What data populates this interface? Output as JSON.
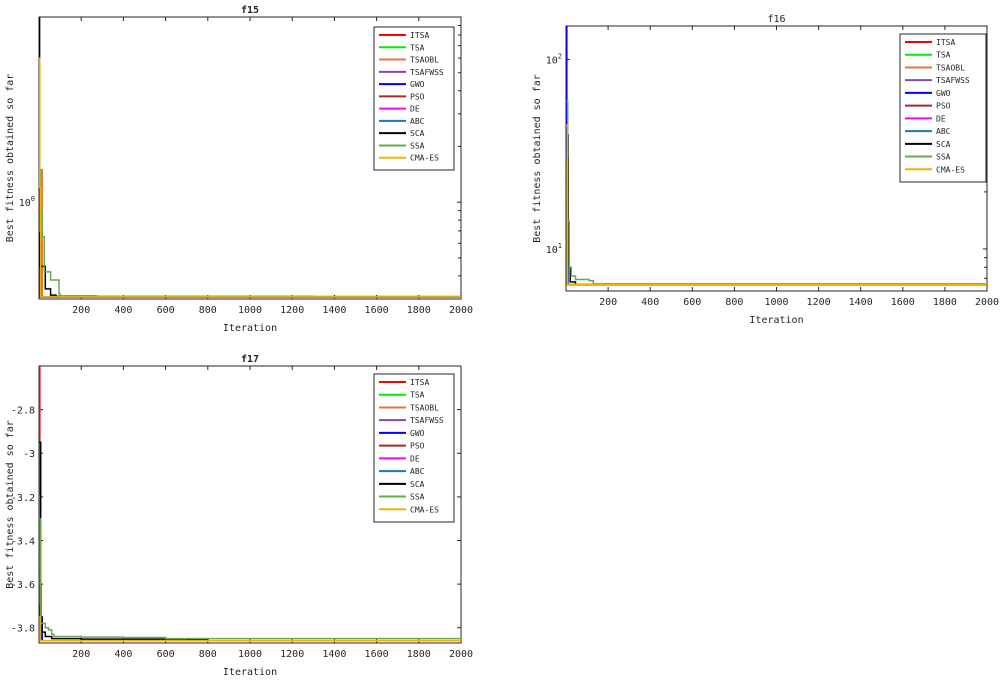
{
  "legend_colors": {
    "ITSA": "#ff0000",
    "TSA": "#00ee00",
    "TSAOBL": "#e8743b",
    "TSAFWSS": "#8e44ad",
    "GWO": "#0000ff",
    "PSO": "#a52a2a",
    "DE": "#ff00ff",
    "ABC": "#1f77b4",
    "SCA": "#000000",
    "SSA": "#6aa84f",
    "CMA-ES": "#f0b400"
  },
  "chart_data": [
    {
      "title": "f15",
      "type": "line",
      "xlabel": "Iteration",
      "ylabel": "Best fitness obtained so far",
      "xlim": [
        0,
        2000
      ],
      "xticks": [
        200,
        400,
        600,
        800,
        1000,
        1200,
        1400,
        1600,
        1800,
        2000
      ],
      "ylog": true,
      "ylim": [
        0.3,
        10
      ],
      "yticks": [
        {
          "v": 1,
          "base": "10",
          "exp": "0"
        }
      ],
      "legend_position": "top-right",
      "series": [
        {
          "name": "ITSA",
          "x": [
            1,
            6,
            2000
          ],
          "y": [
            0.4,
            0.308,
            0.3075
          ]
        },
        {
          "name": "TSA",
          "x": [
            1,
            6,
            2000
          ],
          "y": [
            0.6,
            0.308,
            0.3075
          ]
        },
        {
          "name": "TSAOBL",
          "x": [
            1,
            15,
            2000
          ],
          "y": [
            1.5,
            0.308,
            0.3075
          ]
        },
        {
          "name": "TSAFWSS",
          "x": [
            1,
            10,
            2000
          ],
          "y": [
            0.6,
            0.308,
            0.3075
          ]
        },
        {
          "name": "GWO",
          "x": [
            1,
            6,
            2000
          ],
          "y": [
            0.9,
            0.308,
            0.3075
          ]
        },
        {
          "name": "PSO",
          "x": [
            1,
            8,
            2000
          ],
          "y": [
            0.7,
            0.308,
            0.3075
          ]
        },
        {
          "name": "DE",
          "x": [
            1,
            8,
            2000
          ],
          "y": [
            0.5,
            0.308,
            0.3075
          ]
        },
        {
          "name": "ABC",
          "x": [
            1,
            10,
            2000
          ],
          "y": [
            0.45,
            0.308,
            0.3075
          ]
        },
        {
          "name": "SCA",
          "x": [
            1,
            3,
            30,
            55,
            80,
            280,
            2000
          ],
          "y": [
            10,
            0.45,
            0.34,
            0.315,
            0.31,
            0.309,
            0.308
          ]
        },
        {
          "name": "SSA",
          "x": [
            1,
            5,
            8,
            15,
            25,
            55,
            95,
            100,
            270,
            1300,
            2000
          ],
          "y": [
            0.7,
            1.5,
            0.9,
            0.65,
            0.42,
            0.38,
            0.32,
            0.312,
            0.31,
            0.308,
            0.3075
          ]
        },
        {
          "name": "CMA-ES",
          "x": [
            1,
            4,
            8,
            2000
          ],
          "y": [
            6,
            1.2,
            0.308,
            0.3075
          ]
        }
      ]
    },
    {
      "title": "f16",
      "type": "line",
      "xlabel": "Iteration",
      "ylabel": "Best fitness obtained so far",
      "xlim": [
        0,
        2000
      ],
      "xticks": [
        200,
        400,
        600,
        800,
        1000,
        1200,
        1400,
        1600,
        1800,
        2000
      ],
      "ylog": true,
      "ylim": [
        6,
        150
      ],
      "yticks": [
        {
          "v": 10,
          "base": "10",
          "exp": "1"
        },
        {
          "v": 100,
          "base": "10",
          "exp": "2"
        }
      ],
      "legend_position": "top-right",
      "series": [
        {
          "name": "ITSA",
          "x": [
            1,
            8,
            2000
          ],
          "y": [
            20,
            6.5,
            6.45
          ]
        },
        {
          "name": "TSA",
          "x": [
            1,
            8,
            2000
          ],
          "y": [
            25,
            6.5,
            6.45
          ]
        },
        {
          "name": "TSAOBL",
          "x": [
            1,
            10,
            2000
          ],
          "y": [
            30,
            6.5,
            6.45
          ]
        },
        {
          "name": "TSAFWSS",
          "x": [
            1,
            10,
            2000
          ],
          "y": [
            20,
            6.5,
            6.45
          ]
        },
        {
          "name": "GWO",
          "x": [
            1,
            4,
            10,
            2000
          ],
          "y": [
            150,
            30,
            6.5,
            6.45
          ]
        },
        {
          "name": "PSO",
          "x": [
            1,
            10,
            2000
          ],
          "y": [
            25,
            6.5,
            6.45
          ]
        },
        {
          "name": "DE",
          "x": [
            1,
            10,
            2000
          ],
          "y": [
            20,
            6.5,
            6.45
          ]
        },
        {
          "name": "ABC",
          "x": [
            1,
            10,
            2000
          ],
          "y": [
            20,
            6.5,
            6.45
          ]
        },
        {
          "name": "SCA",
          "x": [
            1,
            10,
            20,
            45,
            2000
          ],
          "y": [
            40,
            8,
            6.7,
            6.5,
            6.45
          ]
        },
        {
          "name": "SSA",
          "x": [
            1,
            8,
            15,
            25,
            45,
            110,
            130,
            2000
          ],
          "y": [
            60,
            14,
            8,
            7.2,
            6.9,
            6.8,
            6.55,
            6.5
          ]
        },
        {
          "name": "CMA-ES",
          "x": [
            1,
            6,
            2000
          ],
          "y": [
            45,
            6.5,
            6.45
          ]
        }
      ]
    },
    {
      "title": "f17",
      "type": "line",
      "xlabel": "Iteration",
      "ylabel": "Best fitness obtained so far",
      "xlim": [
        0,
        2000
      ],
      "xticks": [
        200,
        400,
        600,
        800,
        1000,
        1200,
        1400,
        1600,
        1800,
        2000
      ],
      "ylog": false,
      "ylim": [
        -3.87,
        -2.6
      ],
      "yticks": [
        {
          "v": -3.8,
          "label": "-3.8"
        },
        {
          "v": -3.6,
          "label": "-3.6"
        },
        {
          "v": -3.4,
          "label": "-3.4"
        },
        {
          "v": -3.2,
          "label": "-3.2"
        },
        {
          "v": -3,
          "label": "-3"
        },
        {
          "v": -2.8,
          "label": "-2.8"
        }
      ],
      "legend_position": "top-right",
      "series": [
        {
          "name": "ITSA",
          "x": [
            1,
            4,
            10,
            2000
          ],
          "y": [
            -2.6,
            -3.6,
            -3.86,
            -3.862
          ]
        },
        {
          "name": "TSA",
          "x": [
            1,
            6,
            2000
          ],
          "y": [
            -3.2,
            -3.86,
            -3.862
          ]
        },
        {
          "name": "TSAOBL",
          "x": [
            1,
            8,
            2000
          ],
          "y": [
            -3.5,
            -3.86,
            -3.862
          ]
        },
        {
          "name": "TSAFWSS",
          "x": [
            1,
            8,
            2000
          ],
          "y": [
            -3.4,
            -3.86,
            -3.862
          ]
        },
        {
          "name": "GWO",
          "x": [
            1,
            5,
            15,
            2000
          ],
          "y": [
            -3.7,
            -3.75,
            -3.86,
            -3.862
          ]
        },
        {
          "name": "PSO",
          "x": [
            1,
            8,
            2000
          ],
          "y": [
            -3.3,
            -3.86,
            -3.862
          ]
        },
        {
          "name": "DE",
          "x": [
            1,
            8,
            2000
          ],
          "y": [
            -3.5,
            -3.86,
            -3.862
          ]
        },
        {
          "name": "ABC",
          "x": [
            1,
            8,
            2000
          ],
          "y": [
            -3.6,
            -3.86,
            -3.862
          ]
        },
        {
          "name": "SCA",
          "x": [
            1,
            8,
            15,
            30,
            60,
            200,
            700,
            800,
            2000
          ],
          "y": [
            -2.95,
            -3.76,
            -3.82,
            -3.84,
            -3.85,
            -3.852,
            -3.856,
            -3.86,
            -3.86
          ]
        },
        {
          "name": "SSA",
          "x": [
            1,
            8,
            30,
            45,
            60,
            70,
            200,
            400,
            600,
            2000
          ],
          "y": [
            -3.3,
            -3.78,
            -3.8,
            -3.81,
            -3.83,
            -3.84,
            -3.843,
            -3.845,
            -3.85,
            -3.86
          ]
        },
        {
          "name": "CMA-ES",
          "x": [
            1,
            5,
            2000
          ],
          "y": [
            -3.75,
            -3.86,
            -3.862
          ]
        }
      ]
    }
  ]
}
